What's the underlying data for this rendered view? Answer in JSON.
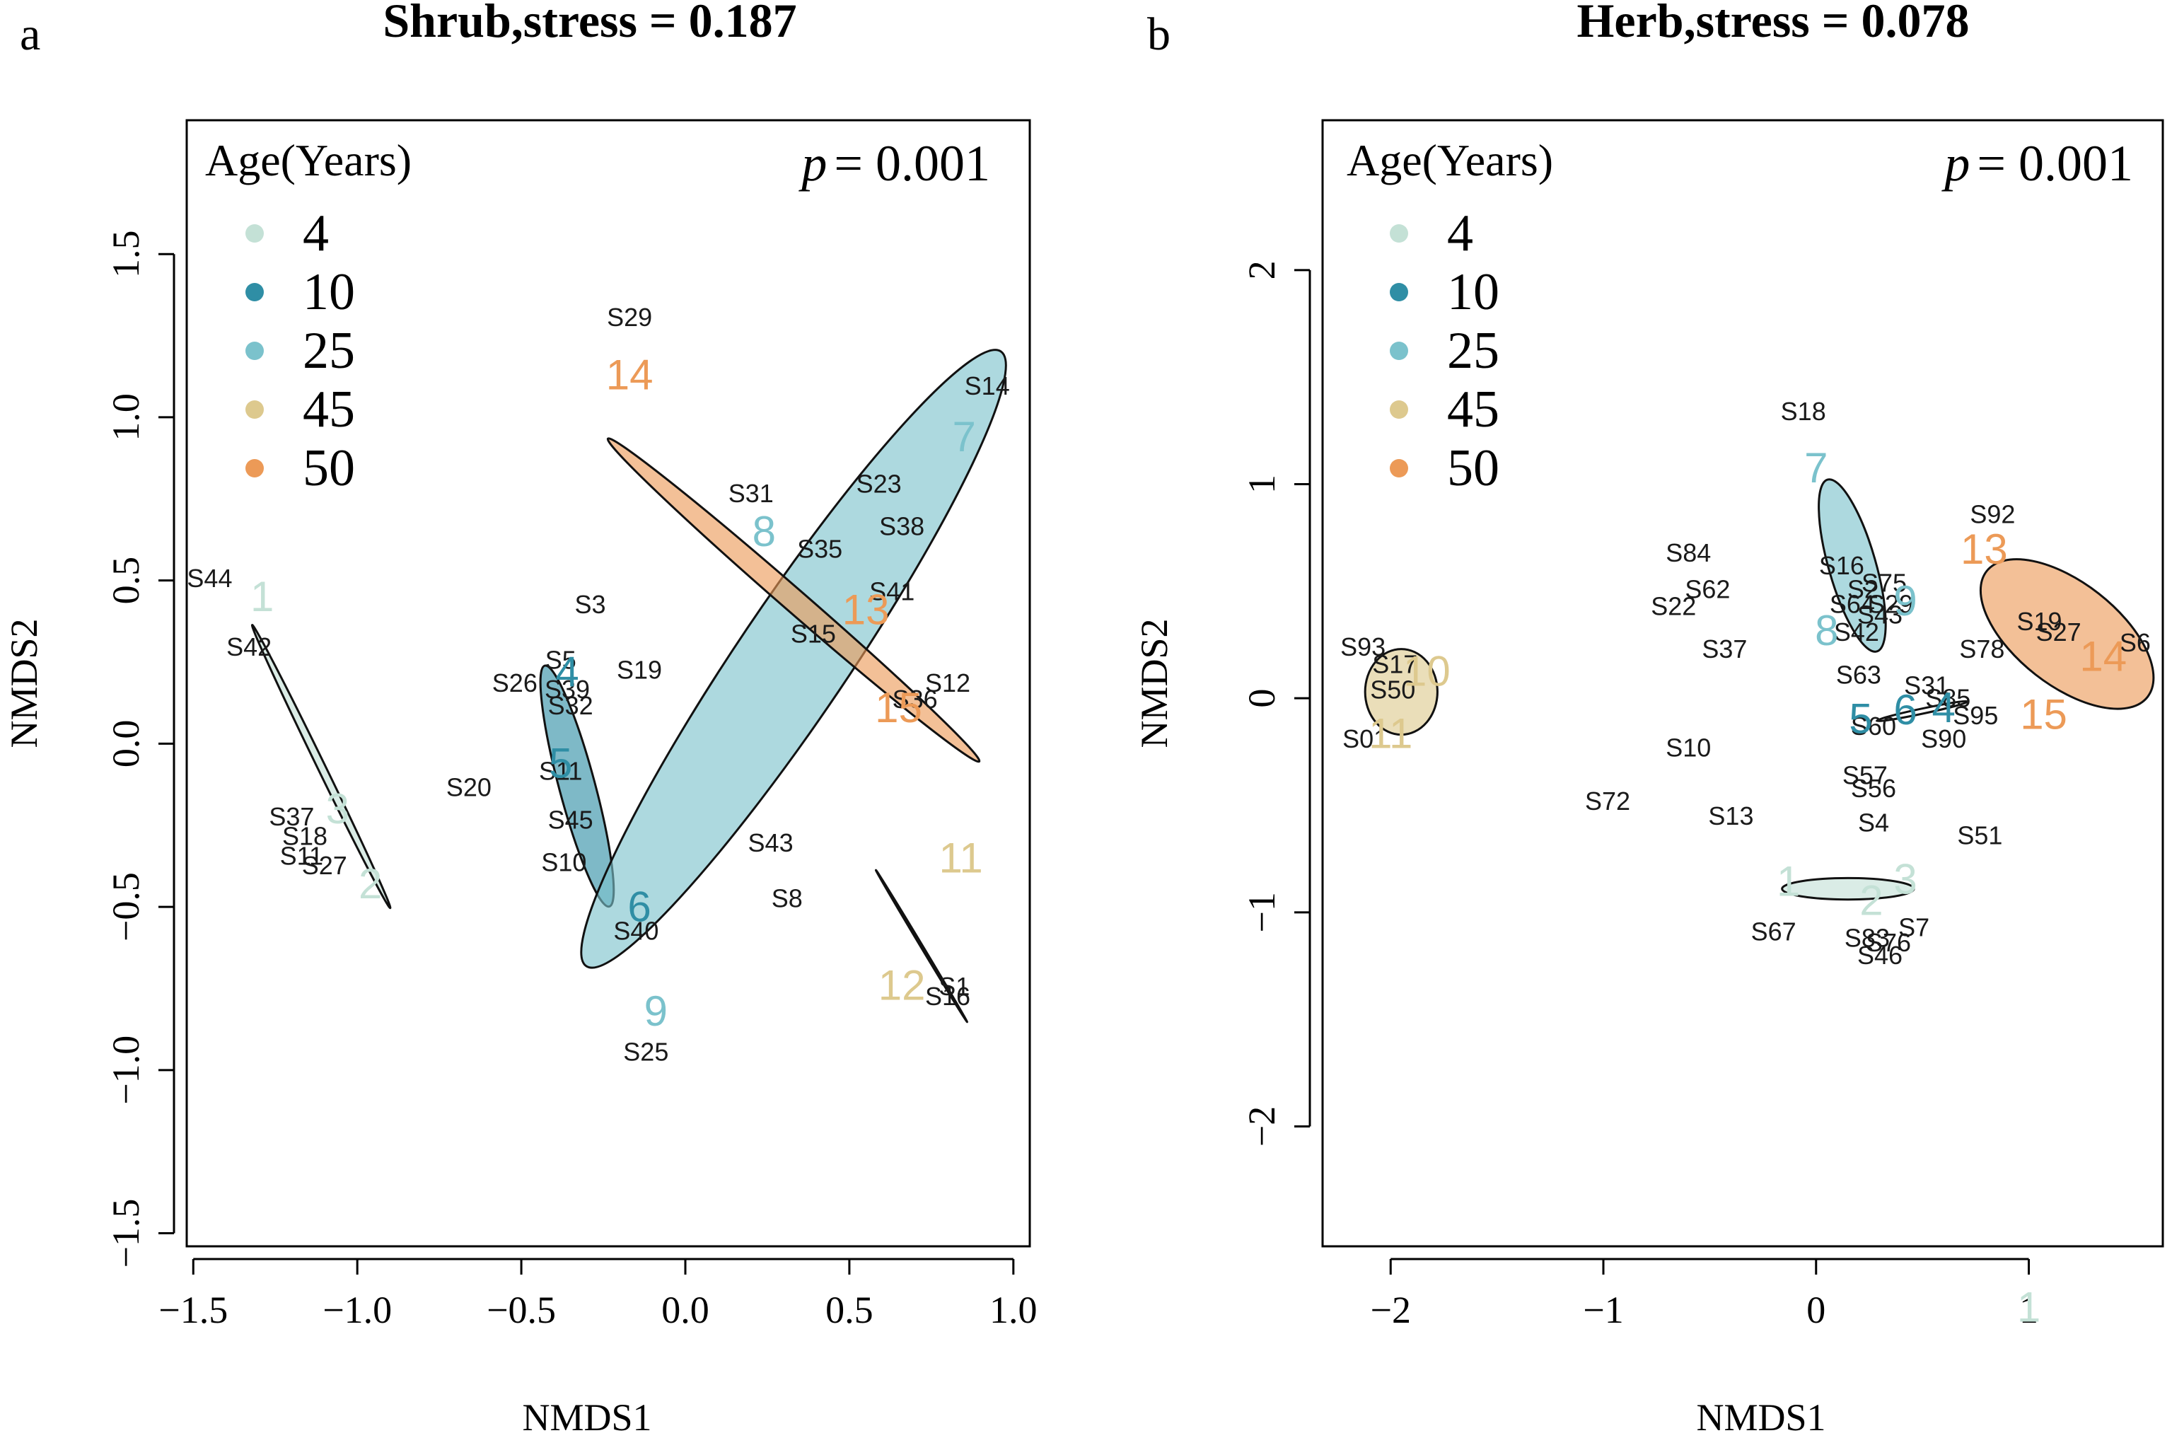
{
  "colors": {
    "4": "#c4e1d6",
    "10": "#2f8ea5",
    "25": "#7bc2cc",
    "45": "#ddc98e",
    "50": "#ec9a57"
  },
  "legend": {
    "title": "Age(Years)",
    "labels": [
      "4",
      "10",
      "25",
      "45",
      "50"
    ]
  },
  "chart_data": [
    {
      "type": "scatter",
      "panel": "a",
      "title": "Shrub,stress = 0.187",
      "p_label": "p",
      "p_value": "= 0.001",
      "xlabel": "NMDS1",
      "ylabel": "NMDS2",
      "xlim": [
        -1.52,
        1.05
      ],
      "ylim": [
        -1.54,
        1.91
      ],
      "xticks": [
        -1.5,
        -1.0,
        -0.5,
        0.0,
        0.5,
        1.0
      ],
      "xtick_labels": [
        "−1.5",
        "−1.0",
        "−0.5",
        "0.0",
        "0.5",
        "1.0"
      ],
      "yticks": [
        -1.5,
        -1.0,
        -0.5,
        0.0,
        0.5,
        1.0,
        1.5
      ],
      "ytick_labels": [
        "−1.5",
        "−1.0",
        "−0.5",
        "0.0",
        "0.5",
        "1.0",
        "1.5"
      ],
      "ellipses": [
        {
          "group": "4",
          "cx": -1.11,
          "cy": -0.07,
          "rx": 0.48,
          "ry": 0.012,
          "angle": -64,
          "fill": true
        },
        {
          "group": "10",
          "cx": -0.33,
          "cy": -0.13,
          "rx": 0.38,
          "ry": 0.055,
          "angle": -75,
          "fill": true
        },
        {
          "group": "25",
          "cx": 0.33,
          "cy": 0.26,
          "rx": 1.13,
          "ry": 0.17,
          "angle": 56,
          "fill": true
        },
        {
          "group": "50",
          "cx": 0.33,
          "cy": 0.44,
          "rx": 0.75,
          "ry": 0.035,
          "angle": -41,
          "fill": true
        },
        {
          "group": "45",
          "cx": 0.72,
          "cy": -0.62,
          "rx": 0.27,
          "ry": 0.002,
          "angle": -59,
          "fill": false
        }
      ],
      "group_labels": [
        {
          "text": "1",
          "x": -1.29,
          "y": 0.44,
          "group": "4"
        },
        {
          "text": "3",
          "x": -1.06,
          "y": -0.21,
          "group": "4"
        },
        {
          "text": "2",
          "x": -0.96,
          "y": -0.44,
          "group": "4"
        },
        {
          "text": "4",
          "x": -0.36,
          "y": 0.21,
          "group": "10"
        },
        {
          "text": "5",
          "x": -0.38,
          "y": -0.07,
          "group": "10"
        },
        {
          "text": "6",
          "x": -0.14,
          "y": -0.51,
          "group": "10"
        },
        {
          "text": "8",
          "x": 0.24,
          "y": 0.64,
          "group": "25"
        },
        {
          "text": "7",
          "x": 0.85,
          "y": 0.93,
          "group": "25"
        },
        {
          "text": "9",
          "x": -0.09,
          "y": -0.83,
          "group": "25"
        },
        {
          "text": "14",
          "x": -0.17,
          "y": 1.12,
          "group": "50"
        },
        {
          "text": "13",
          "x": 0.55,
          "y": 0.4,
          "group": "50"
        },
        {
          "text": "15",
          "x": 0.65,
          "y": 0.1,
          "group": "50"
        },
        {
          "text": "11",
          "x": 0.84,
          "y": -0.36,
          "group": "45"
        },
        {
          "text": "12",
          "x": 0.66,
          "y": -0.75,
          "group": "45"
        }
      ],
      "sites": [
        {
          "text": "S29",
          "x": -0.17,
          "y": 1.3
        },
        {
          "text": "S14",
          "x": 0.92,
          "y": 1.09
        },
        {
          "text": "S23",
          "x": 0.59,
          "y": 0.79
        },
        {
          "text": "S38",
          "x": 0.66,
          "y": 0.66
        },
        {
          "text": "S31",
          "x": 0.2,
          "y": 0.76
        },
        {
          "text": "S35",
          "x": 0.41,
          "y": 0.59
        },
        {
          "text": "S41",
          "x": 0.63,
          "y": 0.46
        },
        {
          "text": "S15",
          "x": 0.39,
          "y": 0.33
        },
        {
          "text": "S12",
          "x": 0.8,
          "y": 0.18
        },
        {
          "text": "S36",
          "x": 0.7,
          "y": 0.13
        },
        {
          "text": "S44",
          "x": -1.45,
          "y": 0.5
        },
        {
          "text": "S42",
          "x": -1.33,
          "y": 0.29
        },
        {
          "text": "S3",
          "x": -0.29,
          "y": 0.42
        },
        {
          "text": "S19",
          "x": -0.14,
          "y": 0.22
        },
        {
          "text": "S26",
          "x": -0.52,
          "y": 0.18
        },
        {
          "text": "S5",
          "x": -0.38,
          "y": 0.25
        },
        {
          "text": "S39",
          "x": -0.36,
          "y": 0.16
        },
        {
          "text": "S32",
          "x": -0.35,
          "y": 0.11
        },
        {
          "text": "S20",
          "x": -0.66,
          "y": -0.14
        },
        {
          "text": "S11",
          "x": -0.38,
          "y": -0.09
        },
        {
          "text": "S45",
          "x": -0.35,
          "y": -0.24
        },
        {
          "text": "S10",
          "x": -0.37,
          "y": -0.37
        },
        {
          "text": "S37",
          "x": -1.2,
          "y": -0.23
        },
        {
          "text": "S18",
          "x": -1.16,
          "y": -0.29
        },
        {
          "text": "S11",
          "x": -1.17,
          "y": -0.35
        },
        {
          "text": "S27",
          "x": -1.1,
          "y": -0.38
        },
        {
          "text": "S43",
          "x": 0.26,
          "y": -0.31
        },
        {
          "text": "S8",
          "x": 0.31,
          "y": -0.48
        },
        {
          "text": "S40",
          "x": -0.15,
          "y": -0.58
        },
        {
          "text": "S1",
          "x": 0.82,
          "y": -0.75
        },
        {
          "text": "S16",
          "x": 0.8,
          "y": -0.78
        },
        {
          "text": "S25",
          "x": -0.12,
          "y": -0.95
        }
      ]
    },
    {
      "type": "scatter",
      "panel": "b",
      "title": "Herb,stress = 0.078",
      "p_label": "p",
      "p_value": "= 0.001",
      "xlabel": "NMDS1",
      "ylabel": "NMDS2",
      "xlim": [
        -2.32,
        1.63
      ],
      "ylim": [
        -2.56,
        2.7
      ],
      "xticks": [
        -2,
        -1,
        0,
        1
      ],
      "xtick_labels": [
        "−2",
        "−1",
        "0",
        "1"
      ],
      "yticks": [
        -2,
        -1,
        0,
        1,
        2
      ],
      "ytick_labels": [
        "−2",
        "−1",
        "0",
        "1",
        "2"
      ],
      "ellipses": [
        {
          "group": "45",
          "cx": -1.95,
          "cy": 0.03,
          "rx": 0.17,
          "ry": 0.2,
          "angle": 0,
          "fill": true
        },
        {
          "group": "25",
          "cx": 0.17,
          "cy": 0.62,
          "rx": 0.42,
          "ry": 0.11,
          "angle": -74,
          "fill": true
        },
        {
          "group": "50",
          "cx": 1.18,
          "cy": 0.3,
          "rx": 0.48,
          "ry": 0.24,
          "angle": -38,
          "fill": true
        },
        {
          "group": "4",
          "cx": 0.15,
          "cy": -0.89,
          "rx": 0.31,
          "ry": 0.05,
          "angle": 0,
          "fill": true
        },
        {
          "group": "10",
          "cx": 0.5,
          "cy": -0.06,
          "rx": 0.22,
          "ry": 0.012,
          "angle": 12,
          "fill": false
        }
      ],
      "group_labels": [
        {
          "text": "7",
          "x": 0.0,
          "y": 1.06,
          "group": "25"
        },
        {
          "text": "8",
          "x": 0.05,
          "y": 0.3,
          "group": "25"
        },
        {
          "text": "9",
          "x": 0.42,
          "y": 0.44,
          "group": "25"
        },
        {
          "text": "13",
          "x": 0.79,
          "y": 0.68,
          "group": "50"
        },
        {
          "text": "14",
          "x": 1.35,
          "y": 0.18,
          "group": "50"
        },
        {
          "text": "15",
          "x": 1.07,
          "y": -0.09,
          "group": "50"
        },
        {
          "text": "10",
          "x": -1.83,
          "y": 0.11,
          "group": "45"
        },
        {
          "text": "11",
          "x": -2.0,
          "y": -0.18,
          "group": "45"
        },
        {
          "text": "1",
          "x": -0.13,
          "y": -0.87,
          "group": "4"
        },
        {
          "text": "2",
          "x": 0.26,
          "y": -0.96,
          "group": "4"
        },
        {
          "text": "3",
          "x": 0.42,
          "y": -0.86,
          "group": "4"
        },
        {
          "text": "5",
          "x": 0.21,
          "y": -0.11,
          "group": "10"
        },
        {
          "text": "6",
          "x": 0.42,
          "y": -0.07,
          "group": "10"
        },
        {
          "text": "4",
          "x": 0.6,
          "y": -0.06,
          "group": "10"
        },
        {
          "text": "1",
          "x": 1.0,
          "y": -2.86,
          "group": "4"
        }
      ],
      "sites": [
        {
          "text": "S18",
          "x": -0.06,
          "y": 1.33
        },
        {
          "text": "S92",
          "x": 0.83,
          "y": 0.85
        },
        {
          "text": "S84",
          "x": -0.6,
          "y": 0.67
        },
        {
          "text": "S62",
          "x": -0.51,
          "y": 0.5
        },
        {
          "text": "S22",
          "x": -0.67,
          "y": 0.42
        },
        {
          "text": "S37",
          "x": -0.43,
          "y": 0.22
        },
        {
          "text": "S16",
          "x": 0.12,
          "y": 0.61
        },
        {
          "text": "S75",
          "x": 0.32,
          "y": 0.53
        },
        {
          "text": "S2",
          "x": 0.22,
          "y": 0.5
        },
        {
          "text": "S64",
          "x": 0.17,
          "y": 0.43
        },
        {
          "text": "S29",
          "x": 0.35,
          "y": 0.43
        },
        {
          "text": "S43",
          "x": 0.3,
          "y": 0.38
        },
        {
          "text": "S42",
          "x": 0.19,
          "y": 0.3
        },
        {
          "text": "S63",
          "x": 0.2,
          "y": 0.1
        },
        {
          "text": "S19",
          "x": 1.05,
          "y": 0.35
        },
        {
          "text": "S27",
          "x": 1.14,
          "y": 0.3
        },
        {
          "text": "S6",
          "x": 1.5,
          "y": 0.25
        },
        {
          "text": "S78",
          "x": 0.78,
          "y": 0.22
        },
        {
          "text": "S31",
          "x": 0.52,
          "y": 0.05
        },
        {
          "text": "S85",
          "x": 0.62,
          "y": -0.01
        },
        {
          "text": "S95",
          "x": 0.75,
          "y": -0.09
        },
        {
          "text": "S90",
          "x": 0.6,
          "y": -0.2
        },
        {
          "text": "S60",
          "x": 0.27,
          "y": -0.14
        },
        {
          "text": "S10",
          "x": -0.6,
          "y": -0.24
        },
        {
          "text": "S57",
          "x": 0.23,
          "y": -0.37
        },
        {
          "text": "S56",
          "x": 0.27,
          "y": -0.43
        },
        {
          "text": "S72",
          "x": -0.98,
          "y": -0.49
        },
        {
          "text": "S13",
          "x": -0.4,
          "y": -0.56
        },
        {
          "text": "S4",
          "x": 0.27,
          "y": -0.59
        },
        {
          "text": "S51",
          "x": 0.77,
          "y": -0.65
        },
        {
          "text": "S7",
          "x": 0.46,
          "y": -1.08
        },
        {
          "text": "S67",
          "x": -0.2,
          "y": -1.1
        },
        {
          "text": "S83",
          "x": 0.24,
          "y": -1.13
        },
        {
          "text": "S76",
          "x": 0.34,
          "y": -1.15
        },
        {
          "text": "S46",
          "x": 0.3,
          "y": -1.21
        },
        {
          "text": "S93",
          "x": -2.13,
          "y": 0.23
        },
        {
          "text": "S17",
          "x": -1.98,
          "y": 0.15
        },
        {
          "text": "S50",
          "x": -1.99,
          "y": 0.03
        },
        {
          "text": "S01",
          "x": -2.12,
          "y": -0.2
        }
      ]
    }
  ]
}
